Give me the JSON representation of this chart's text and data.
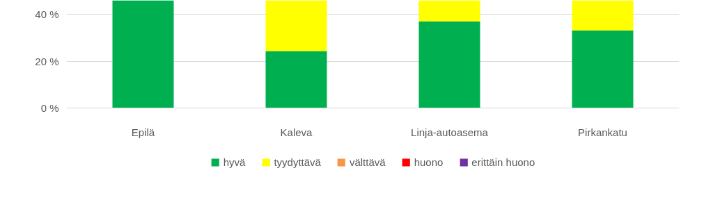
{
  "chart_data": {
    "type": "bar",
    "stacked": true,
    "categories": [
      "Epilä",
      "Kaleva",
      "Linja-autoasema",
      "Pirkankatu"
    ],
    "series": [
      {
        "name": "hyvä",
        "color": "#00b050",
        "values": [
          46,
          24.3,
          37,
          33.2
        ]
      },
      {
        "name": "tyydyttävä",
        "color": "#ffff00",
        "values": [
          0,
          21.7,
          9,
          12.8
        ]
      },
      {
        "name": "välttävä",
        "color": "#f79646",
        "values": [
          0,
          0,
          0,
          0
        ]
      },
      {
        "name": "huono",
        "color": "#ff0000",
        "values": [
          0,
          0,
          0,
          0
        ]
      },
      {
        "name": "erittäin huono",
        "color": "#7030a0",
        "values": [
          0,
          0,
          0,
          0
        ]
      }
    ],
    "ylim": [
      0,
      46
    ],
    "yticks": [
      {
        "value": 0,
        "label": "0 %"
      },
      {
        "value": 20,
        "label": "20 %"
      },
      {
        "value": 40,
        "label": "40 %"
      }
    ],
    "grid": "y",
    "legend": "bottom"
  }
}
